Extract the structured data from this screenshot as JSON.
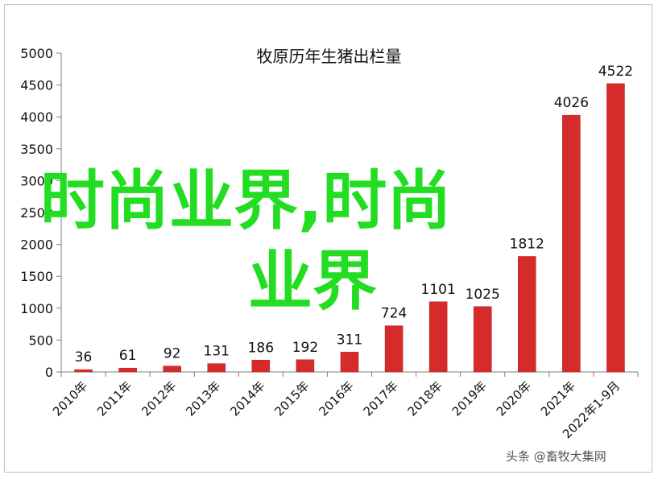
{
  "chart_data": {
    "type": "bar",
    "title": "牧原历年生猪出栏量",
    "categories": [
      "2010年",
      "2011年",
      "2012年",
      "2013年",
      "2014年",
      "2015年",
      "2016年",
      "2017年",
      "2018年",
      "2019年",
      "2020年",
      "2021年",
      "2022年1-9月"
    ],
    "values": [
      36,
      61,
      92,
      131,
      186,
      192,
      311,
      724,
      1101,
      1025,
      1812,
      4026,
      4522
    ],
    "ylim": [
      0,
      5000
    ],
    "yticks": [
      0,
      500,
      1000,
      1500,
      2000,
      2500,
      3000,
      3500,
      4000,
      4500,
      5000
    ],
    "xlabel": "",
    "ylabel": "",
    "grid": false,
    "bar_color": "#d62b2b"
  },
  "overlay": {
    "line1": "时尚业界,时尚",
    "line2": "业界",
    "color": "#22dd22"
  },
  "watermark": "头条 @畜牧大集网"
}
